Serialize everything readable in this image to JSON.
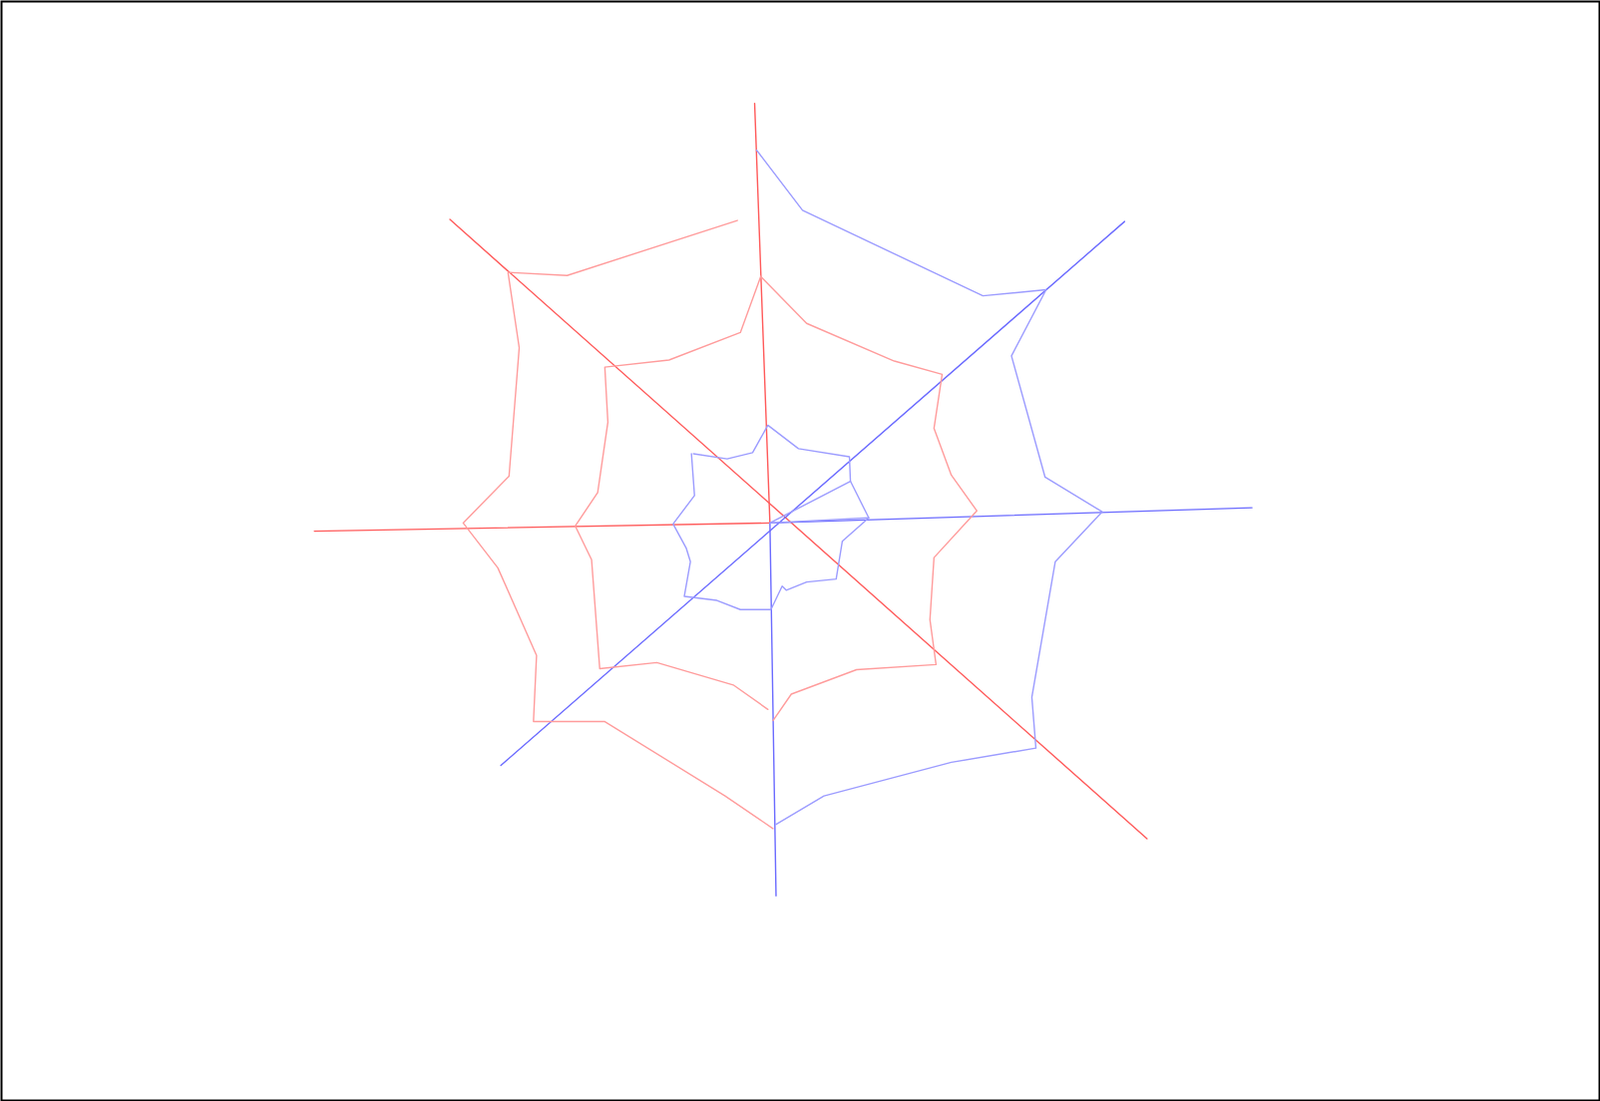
{
  "chart_data": {
    "type": "line",
    "xlim": [
      0,
      1568
    ],
    "ylim": [
      1079,
      0
    ],
    "tick_labels": false,
    "grid": false,
    "series": [
      {
        "color": "#ff5a5a",
        "x": [
          739,
          754
        ],
        "y": [
          100,
          512
        ]
      },
      {
        "color": "#ff5a5a",
        "x": [
          440,
          1124
        ],
        "y": [
          214,
          822
        ]
      },
      {
        "color": "#ff5a5a",
        "x": [
          307,
          754
        ],
        "y": [
          520,
          512
        ]
      },
      {
        "color": "#6b6bff",
        "x": [
          490,
          1102
        ],
        "y": [
          750,
          216
        ]
      },
      {
        "color": "#6b6bff",
        "x": [
          754,
          1227
        ],
        "y": [
          512,
          497
        ]
      },
      {
        "color": "#6b6bff",
        "x": [
          754,
          760
        ],
        "y": [
          512,
          878
        ]
      },
      {
        "color": "#ff9c9c",
        "x": [
          722,
          555,
          497,
          508,
          498,
          453,
          487,
          525,
          522,
          592,
          710,
          757
        ],
        "y": [
          215,
          269,
          266,
          340,
          466,
          512,
          556,
          642,
          707,
          707,
          780,
          812
        ]
      },
      {
        "color": "#ff9c9c",
        "x": [
          745,
          725,
          655,
          592,
          595,
          585,
          563,
          579,
          587,
          643,
          718,
          752
        ],
        "y": [
          270,
          325,
          352,
          359,
          413,
          482,
          515,
          548,
          655,
          649,
          671,
          695
        ]
      },
      {
        "color": "#ff9c9c",
        "x": [
          745,
          790,
          876,
          923,
          915,
          932,
          957,
          915,
          911,
          917,
          839,
          775,
          757
        ],
        "y": [
          270,
          316,
          353,
          366,
          419,
          465,
          500,
          546,
          607,
          651,
          656,
          680,
          706
        ]
      },
      {
        "color": "#9c9cff",
        "x": [
          741,
          786,
          963,
          1025,
          991,
          1024,
          1080,
          1034,
          1011,
          1015,
          932,
          807,
          760
        ],
        "y": [
          146,
          205,
          289,
          283,
          348,
          467,
          501,
          550,
          683,
          733,
          747,
          780,
          808
        ]
      },
      {
        "color": "#9c9cff",
        "x": [
          679,
          712,
          737,
          752,
          782,
          832,
          833,
          851,
          825,
          819,
          790,
          770,
          766,
          755,
          725,
          702,
          670,
          676,
          672,
          659,
          680,
          677
        ],
        "y": [
          444,
          449,
          443,
          416,
          439,
          447,
          471,
          507,
          530,
          567,
          570,
          578,
          574,
          597,
          597,
          588,
          584,
          550,
          537,
          513,
          485,
          444
        ]
      },
      {
        "color": "#9c9cff",
        "x": [
          754,
          833
        ],
        "y": [
          512,
          471
        ]
      },
      {
        "color": "#9c9cff",
        "x": [
          754,
          851
        ],
        "y": [
          512,
          507
        ]
      }
    ]
  }
}
